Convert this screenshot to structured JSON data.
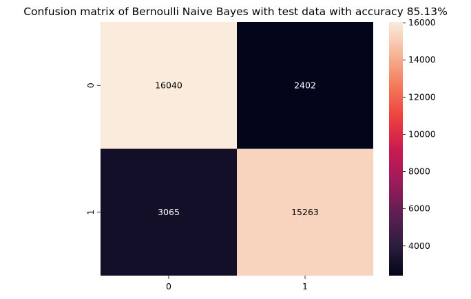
{
  "chart_data": {
    "type": "heatmap",
    "title": "Confusion matrix of Bernoulli Naive Bayes with test data  with accuracy 85.13%",
    "x_categories": [
      "0",
      "1"
    ],
    "y_categories": [
      "0",
      "1"
    ],
    "values": [
      [
        16040,
        2402
      ],
      [
        3065,
        15263
      ]
    ],
    "colormap": "rocket",
    "colorbar": {
      "range": [
        2402,
        16040
      ],
      "ticks": [
        4000,
        6000,
        8000,
        10000,
        12000,
        14000,
        16000
      ]
    }
  }
}
